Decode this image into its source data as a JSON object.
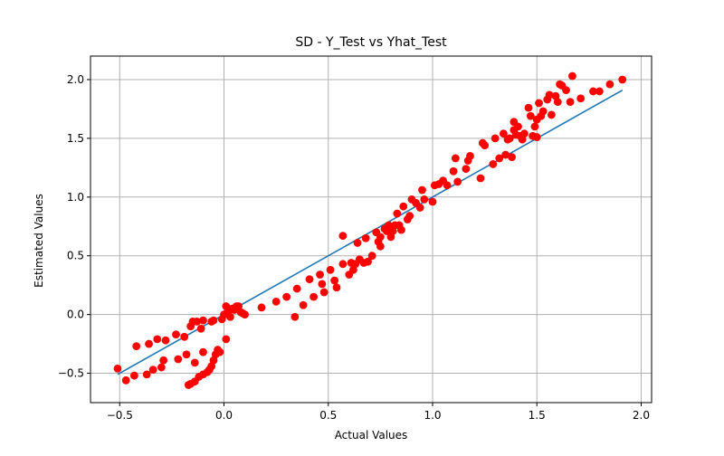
{
  "chart_data": {
    "type": "scatter",
    "title": "SD - Y_Test vs Yhat_Test",
    "xlabel": "Actual Values",
    "ylabel": "Estimated Values",
    "xlim": [
      -0.64,
      2.05
    ],
    "ylim": [
      -0.75,
      2.2
    ],
    "xticks": [
      -0.5,
      0.0,
      0.5,
      1.0,
      1.5,
      2.0
    ],
    "xtick_labels": [
      "−0.5",
      "0.0",
      "0.5",
      "1.0",
      "1.5",
      "2.0"
    ],
    "yticks": [
      -0.5,
      0.0,
      0.5,
      1.0,
      1.5,
      2.0
    ],
    "ytick_labels": [
      "−0.5",
      "0.0",
      "0.5",
      "1.0",
      "1.5",
      "2.0"
    ],
    "grid": true,
    "colors": {
      "points": "#ff0000",
      "line": "#1f77b4",
      "grid": "#b0b0b0"
    },
    "fit_line": {
      "x": [
        -0.51,
        1.91
      ],
      "y": [
        -0.51,
        1.91
      ]
    },
    "points": [
      [
        -0.51,
        -0.46
      ],
      [
        -0.47,
        -0.56
      ],
      [
        -0.43,
        -0.52
      ],
      [
        -0.42,
        -0.27
      ],
      [
        -0.37,
        -0.51
      ],
      [
        -0.36,
        -0.25
      ],
      [
        -0.34,
        -0.47
      ],
      [
        -0.32,
        -0.21
      ],
      [
        -0.3,
        -0.45
      ],
      [
        -0.29,
        -0.39
      ],
      [
        -0.28,
        -0.22
      ],
      [
        -0.23,
        -0.17
      ],
      [
        -0.22,
        -0.38
      ],
      [
        -0.19,
        -0.19
      ],
      [
        -0.18,
        -0.34
      ],
      [
        -0.17,
        -0.6
      ],
      [
        -0.16,
        -0.59
      ],
      [
        -0.16,
        -0.1
      ],
      [
        -0.15,
        -0.06
      ],
      [
        -0.14,
        -0.57
      ],
      [
        -0.14,
        -0.41
      ],
      [
        -0.13,
        -0.06
      ],
      [
        -0.12,
        -0.53
      ],
      [
        -0.11,
        -0.12
      ],
      [
        -0.1,
        -0.51
      ],
      [
        -0.1,
        -0.32
      ],
      [
        -0.1,
        -0.05
      ],
      [
        -0.08,
        -0.49
      ],
      [
        -0.07,
        -0.47
      ],
      [
        -0.06,
        -0.44
      ],
      [
        -0.06,
        -0.06
      ],
      [
        -0.05,
        -0.39
      ],
      [
        -0.05,
        -0.05
      ],
      [
        -0.04,
        -0.34
      ],
      [
        -0.03,
        -0.3
      ],
      [
        -0.03,
        -0.32
      ],
      [
        -0.02,
        -0.32
      ],
      [
        -0.01,
        -0.04
      ],
      [
        0.0,
        0.0
      ],
      [
        0.01,
        -0.21
      ],
      [
        0.01,
        0.07
      ],
      [
        0.02,
        0.02
      ],
      [
        0.03,
        -0.02
      ],
      [
        0.04,
        0.05
      ],
      [
        0.05,
        0.04
      ],
      [
        0.06,
        0.07
      ],
      [
        0.07,
        0.07
      ],
      [
        0.08,
        0.02
      ],
      [
        0.09,
        0.01
      ],
      [
        0.1,
        0.0
      ],
      [
        0.18,
        0.06
      ],
      [
        0.25,
        0.11
      ],
      [
        0.3,
        0.15
      ],
      [
        0.34,
        -0.02
      ],
      [
        0.35,
        0.22
      ],
      [
        0.38,
        0.08
      ],
      [
        0.41,
        0.3
      ],
      [
        0.43,
        0.15
      ],
      [
        0.46,
        0.34
      ],
      [
        0.47,
        0.26
      ],
      [
        0.48,
        0.19
      ],
      [
        0.51,
        0.38
      ],
      [
        0.53,
        0.29
      ],
      [
        0.54,
        0.23
      ],
      [
        0.57,
        0.43
      ],
      [
        0.57,
        0.67
      ],
      [
        0.6,
        0.34
      ],
      [
        0.61,
        0.44
      ],
      [
        0.62,
        0.38
      ],
      [
        0.63,
        0.43
      ],
      [
        0.64,
        0.61
      ],
      [
        0.65,
        0.47
      ],
      [
        0.67,
        0.44
      ],
      [
        0.68,
        0.65
      ],
      [
        0.69,
        0.45
      ],
      [
        0.71,
        0.5
      ],
      [
        0.73,
        0.7
      ],
      [
        0.74,
        0.62
      ],
      [
        0.75,
        0.58
      ],
      [
        0.75,
        0.66
      ],
      [
        0.77,
        0.73
      ],
      [
        0.78,
        0.71
      ],
      [
        0.79,
        0.76
      ],
      [
        0.8,
        0.66
      ],
      [
        0.81,
        0.71
      ],
      [
        0.82,
        0.76
      ],
      [
        0.83,
        0.86
      ],
      [
        0.84,
        0.76
      ],
      [
        0.85,
        0.72
      ],
      [
        0.86,
        0.92
      ],
      [
        0.88,
        0.81
      ],
      [
        0.89,
        0.84
      ],
      [
        0.9,
        0.98
      ],
      [
        0.92,
        0.95
      ],
      [
        0.94,
        0.91
      ],
      [
        0.95,
        1.06
      ],
      [
        0.96,
        0.98
      ],
      [
        1.0,
        0.96
      ],
      [
        1.01,
        1.1
      ],
      [
        1.03,
        1.11
      ],
      [
        1.05,
        1.14
      ],
      [
        1.07,
        1.1
      ],
      [
        1.1,
        1.22
      ],
      [
        1.11,
        1.33
      ],
      [
        1.12,
        1.13
      ],
      [
        1.16,
        1.24
      ],
      [
        1.17,
        1.31
      ],
      [
        1.18,
        1.35
      ],
      [
        1.23,
        1.16
      ],
      [
        1.24,
        1.46
      ],
      [
        1.25,
        1.44
      ],
      [
        1.29,
        1.28
      ],
      [
        1.3,
        1.5
      ],
      [
        1.32,
        1.33
      ],
      [
        1.34,
        1.54
      ],
      [
        1.35,
        1.36
      ],
      [
        1.36,
        1.49
      ],
      [
        1.37,
        1.5
      ],
      [
        1.38,
        1.34
      ],
      [
        1.39,
        1.57
      ],
      [
        1.39,
        1.64
      ],
      [
        1.4,
        1.53
      ],
      [
        1.41,
        1.6
      ],
      [
        1.42,
        1.52
      ],
      [
        1.43,
        1.49
      ],
      [
        1.44,
        1.54
      ],
      [
        1.46,
        1.76
      ],
      [
        1.47,
        1.69
      ],
      [
        1.48,
        1.52
      ],
      [
        1.49,
        1.6
      ],
      [
        1.5,
        1.66
      ],
      [
        1.5,
        1.51
      ],
      [
        1.51,
        1.8
      ],
      [
        1.52,
        1.69
      ],
      [
        1.53,
        1.73
      ],
      [
        1.55,
        1.83
      ],
      [
        1.56,
        1.87
      ],
      [
        1.57,
        1.7
      ],
      [
        1.59,
        1.86
      ],
      [
        1.6,
        1.81
      ],
      [
        1.61,
        1.96
      ],
      [
        1.62,
        1.95
      ],
      [
        1.64,
        1.91
      ],
      [
        1.66,
        1.81
      ],
      [
        1.67,
        2.03
      ],
      [
        1.71,
        1.84
      ],
      [
        1.77,
        1.9
      ],
      [
        1.8,
        1.9
      ],
      [
        1.85,
        1.96
      ],
      [
        1.91,
        2.0
      ]
    ]
  }
}
